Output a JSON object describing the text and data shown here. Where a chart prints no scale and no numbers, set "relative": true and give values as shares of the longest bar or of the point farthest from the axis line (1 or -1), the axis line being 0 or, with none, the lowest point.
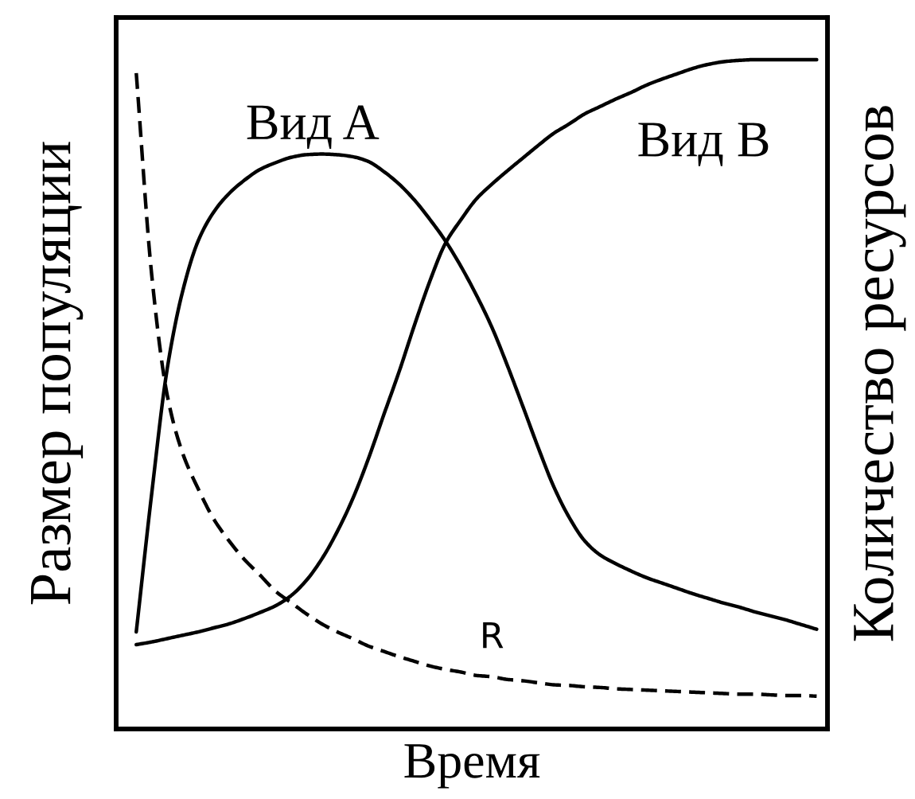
{
  "chart_data": {
    "type": "line",
    "relative": true,
    "xlabel": "Время",
    "ylabel": "Размер популяции",
    "y2label": "Количество ресурсов",
    "tick_labels": false,
    "categories": [
      null,
      null,
      null,
      null,
      null,
      null,
      null,
      null,
      null,
      null,
      null,
      null,
      null,
      null,
      null,
      null,
      null,
      null,
      null,
      null,
      null,
      null,
      null,
      null,
      null,
      null,
      null,
      null,
      null,
      null,
      null,
      null,
      null,
      null,
      null,
      null,
      null,
      null,
      null,
      null,
      null,
      null,
      null,
      null,
      null
    ],
    "series": [
      {
        "name": "Вид A",
        "color": "#000000",
        "line_style": "solid",
        "values": [
          0.145,
          0.352,
          0.538,
          0.654,
          0.729,
          0.772,
          0.8,
          0.82,
          0.836,
          0.846,
          0.854,
          0.858,
          0.859,
          0.858,
          0.855,
          0.848,
          0.833,
          0.814,
          0.79,
          0.761,
          0.729,
          0.691,
          0.648,
          0.6,
          0.543,
          0.482,
          0.42,
          0.362,
          0.316,
          0.281,
          0.26,
          0.247,
          0.236,
          0.226,
          0.218,
          0.21,
          0.202,
          0.195,
          0.188,
          0.182,
          0.175,
          0.169,
          0.163,
          0.156,
          0.149
        ]
      },
      {
        "name": "Вид B",
        "color": "#000000",
        "line_style": "solid",
        "values": [
          0.126,
          0.13,
          0.135,
          0.14,
          0.145,
          0.151,
          0.157,
          0.165,
          0.174,
          0.184,
          0.199,
          0.222,
          0.254,
          0.295,
          0.344,
          0.403,
          0.469,
          0.534,
          0.604,
          0.67,
          0.726,
          0.761,
          0.792,
          0.814,
          0.834,
          0.853,
          0.872,
          0.89,
          0.904,
          0.919,
          0.93,
          0.941,
          0.951,
          0.962,
          0.971,
          0.979,
          0.987,
          0.993,
          0.997,
          0.999,
          1.0,
          1.0,
          1.0,
          1.0,
          1.0
        ]
      },
      {
        "name": "R",
        "color": "#000000",
        "line_style": "dashed",
        "values": [
          0.98,
          0.678,
          0.499,
          0.412,
          0.359,
          0.314,
          0.281,
          0.253,
          0.23,
          0.206,
          0.189,
          0.172,
          0.157,
          0.145,
          0.135,
          0.124,
          0.116,
          0.108,
          0.101,
          0.094,
          0.089,
          0.085,
          0.08,
          0.078,
          0.074,
          0.072,
          0.069,
          0.066,
          0.065,
          0.063,
          0.062,
          0.06,
          0.059,
          0.058,
          0.057,
          0.056,
          0.055,
          0.054,
          0.053,
          0.052,
          0.052,
          0.051,
          0.05,
          0.05,
          0.049
        ]
      }
    ]
  }
}
